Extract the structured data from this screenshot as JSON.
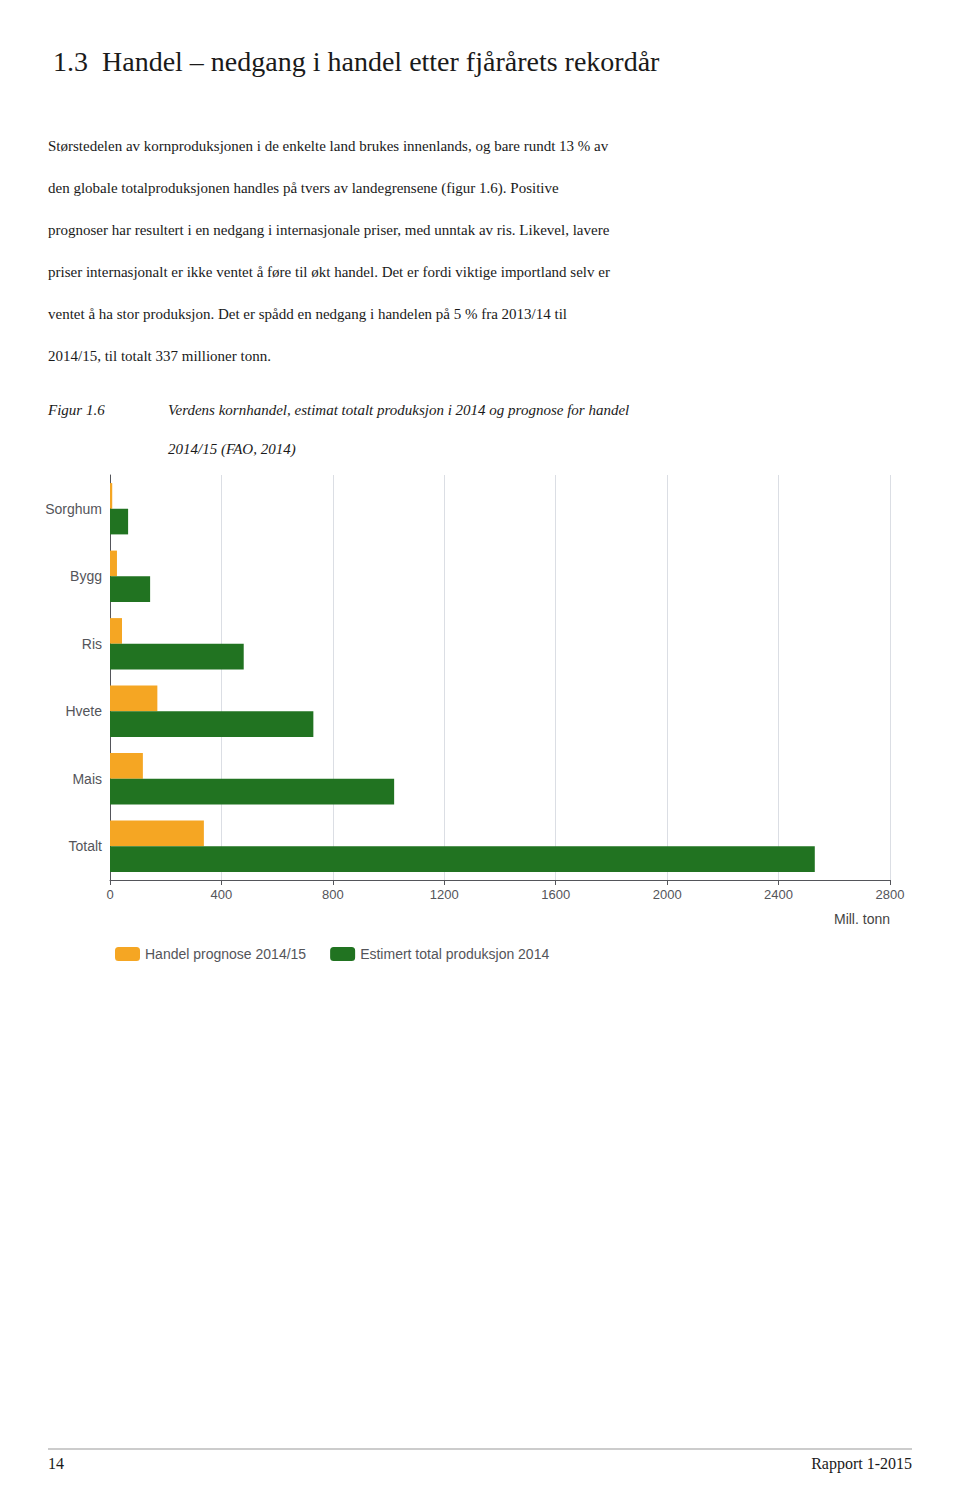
{
  "chart_data": {
    "type": "bar",
    "orientation": "horizontal",
    "title": "1.3  Handel – nedgang i handel etter fjårårets rekordår",
    "paragraph": [
      "Størstedelen av kornproduksjonen i de enkelte land brukes innenlands, og bare rundt 13 % av",
      "den globale totalproduksjonen handles på tvers av landegrensene (figur 1.6). Positive",
      "prognoser har resultert i en nedgang i internasjonale priser, med unntak av ris. Likevel, lavere",
      "priser internasjonalt er ikke ventet å føre til økt handel. Det er fordi viktige importland selv er",
      "ventet å ha stor produksjon. Det er spådd en nedgang i handelen på 5 % fra 2013/14 til",
      "2014/15, til totalt 337 millioner tonn."
    ],
    "figure_label": "Figur 1.6",
    "caption": [
      "Verdens kornhandel, estimat totalt produksjon i 2014 og prognose for handel",
      "2014/15 (FAO, 2014)"
    ],
    "footer_left": "14",
    "footer_right": "Rapport 1-2015",
    "categories": [
      "Sorghum",
      "Bygg",
      "Ris",
      "Hvete",
      "Mais",
      "Totalt"
    ],
    "series": [
      {
        "name": "Handel prognose 2014/15",
        "color": "#F5A623",
        "values": [
          8,
          25,
          43,
          170,
          118,
          337
        ]
      },
      {
        "name": "Estimert total produksjon 2014",
        "color": "#217321",
        "values": [
          65,
          144,
          480,
          730,
          1020,
          2530
        ]
      }
    ],
    "xlabel": "Mill. tonn",
    "xlim": [
      0,
      2800
    ],
    "xticks": [
      0,
      400,
      800,
      1200,
      1600,
      2000,
      2400,
      2800
    ],
    "grid": true,
    "legend": "bottom"
  }
}
